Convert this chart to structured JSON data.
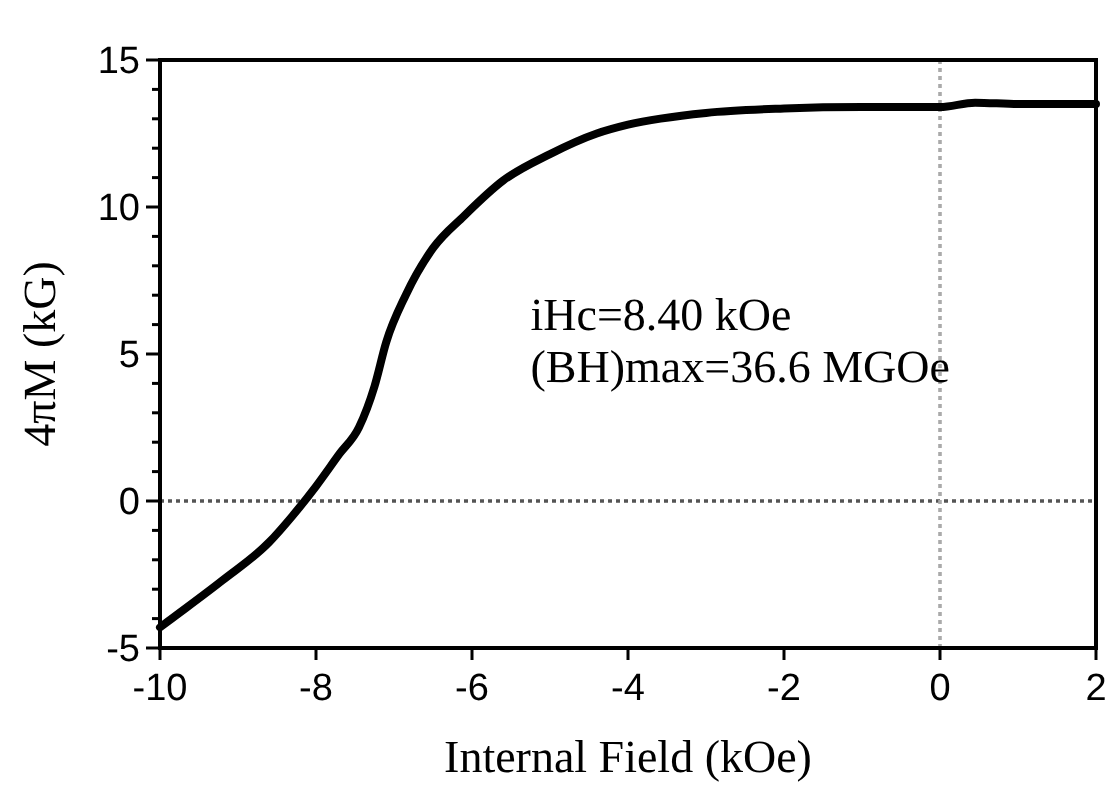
{
  "chart_data": {
    "type": "line",
    "xlabel": "Internal Field (kOe)",
    "ylabel": "4πM (kG)",
    "annotations": [
      "iHc=8.40 kOe",
      "(BH)max=36.6 MGOe"
    ],
    "series": [
      {
        "color": "#000000",
        "x": [
          -10,
          -9.9,
          -9.2,
          -8.6,
          -8.3,
          -8.0,
          -7.7,
          -7.45,
          -7.25,
          -7.1,
          -6.85,
          -6.5,
          -6.1,
          -5.6,
          -5.0,
          -4.4,
          -4.0,
          -3.0,
          -2.0,
          -1.0,
          0,
          0.45,
          1.0,
          2.0
        ],
        "values": [
          -4.3,
          -4.1,
          -2.7,
          -1.4,
          -0.5,
          0.5,
          1.6,
          2.5,
          3.9,
          5.4,
          7.0,
          8.6,
          9.7,
          10.9,
          11.8,
          12.5,
          12.8,
          13.2,
          13.35,
          13.4,
          13.4,
          13.55,
          13.5,
          13.5
        ]
      }
    ],
    "xlim": [
      -10,
      2
    ],
    "xticks": [
      -10,
      -8,
      -6,
      -4,
      -2,
      0,
      2
    ],
    "ylim": [
      -5,
      15
    ],
    "yticks": [
      -5,
      {
        "value": -4,
        "label": null
      },
      {
        "value": -3,
        "label": null
      },
      {
        "value": -2,
        "label": null
      },
      {
        "value": -1,
        "label": null
      },
      0,
      {
        "value": 1,
        "label": null
      },
      {
        "value": 2,
        "label": null
      },
      {
        "value": 3,
        "label": null
      },
      {
        "value": 4,
        "label": null
      },
      5,
      {
        "value": 6,
        "label": null
      },
      {
        "value": 7,
        "label": null
      },
      {
        "value": 8,
        "label": null
      },
      {
        "value": 9,
        "label": null
      },
      10,
      {
        "value": 11,
        "label": null
      },
      {
        "value": 12,
        "label": null
      },
      {
        "value": 13,
        "label": null
      },
      {
        "value": 14,
        "label": null
      },
      15
    ],
    "ref_lines": [
      {
        "axis": "y",
        "value": 0,
        "line_style": "dotted",
        "color": "#555555"
      },
      {
        "axis": "x",
        "value": 0,
        "line_style": "dotted",
        "color": "#aaaaaa"
      }
    ],
    "grid": false,
    "marker": "none",
    "line_style": "solid"
  }
}
